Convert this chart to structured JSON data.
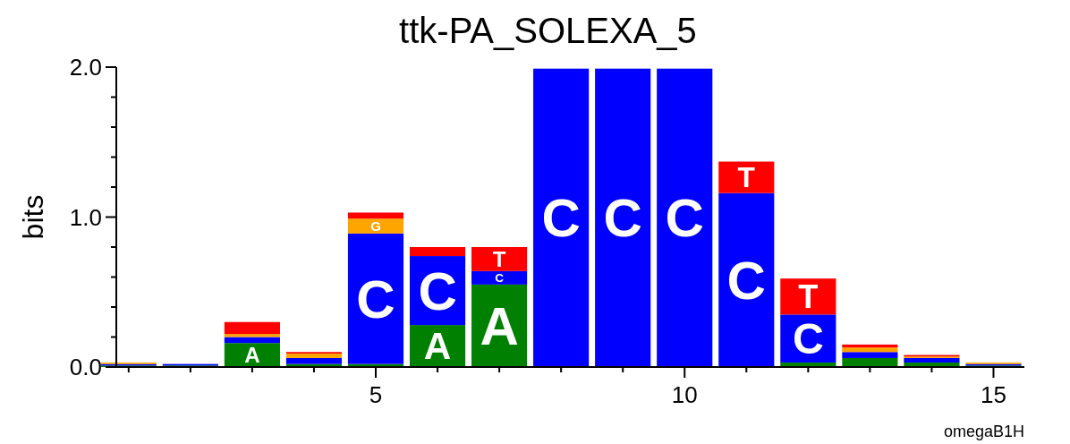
{
  "chart_data": {
    "type": "bar",
    "stacked": true,
    "title": "ttk-PA_SOLEXA_5",
    "ylabel": "bits",
    "x": [
      1,
      2,
      3,
      4,
      5,
      6,
      7,
      8,
      9,
      10,
      11,
      12,
      13,
      14,
      15
    ],
    "series": [
      {
        "name": "A",
        "color": "#008000",
        "values": [
          0.01,
          0.01,
          0.16,
          0.02,
          0.02,
          0.28,
          0.55,
          0,
          0,
          0,
          0,
          0.03,
          0.06,
          0.03,
          0.01
        ]
      },
      {
        "name": "C",
        "color": "#0000ff",
        "values": [
          0.01,
          0.01,
          0.04,
          0.04,
          0.87,
          0.46,
          0.09,
          1.99,
          1.99,
          1.99,
          1.16,
          0.32,
          0.04,
          0.03,
          0.01
        ]
      },
      {
        "name": "G",
        "color": "#ffa500",
        "values": [
          0.01,
          0.0,
          0.02,
          0.03,
          0.1,
          0,
          0,
          0,
          0,
          0,
          0,
          0,
          0.03,
          0.01,
          0.01
        ]
      },
      {
        "name": "T",
        "color": "#ff0000",
        "values": [
          0.0,
          0.0,
          0.08,
          0.01,
          0.04,
          0.06,
          0.16,
          0,
          0,
          0,
          0.21,
          0.24,
          0.02,
          0.01,
          0.0
        ]
      }
    ],
    "xlim": [
      0.8,
      15.5
    ],
    "xticks": [
      {
        "value": 1,
        "label": null
      },
      {
        "value": 2,
        "label": null
      },
      {
        "value": 3,
        "label": null
      },
      {
        "value": 4,
        "label": null
      },
      5,
      {
        "value": 6,
        "label": null
      },
      {
        "value": 7,
        "label": null
      },
      {
        "value": 8,
        "label": null
      },
      {
        "value": 9,
        "label": null
      },
      10,
      {
        "value": 11,
        "label": null
      },
      {
        "value": 12,
        "label": null
      },
      {
        "value": 13,
        "label": null
      },
      {
        "value": 14,
        "label": null
      },
      15
    ],
    "ylim": [
      0,
      2
    ],
    "yticks": [
      {
        "value": 0,
        "label": "0.0"
      },
      {
        "value": 0.2,
        "label": null
      },
      {
        "value": 0.4,
        "label": null
      },
      {
        "value": 0.6,
        "label": null
      },
      {
        "value": 0.8,
        "label": null
      },
      {
        "value": 1,
        "label": "1.0"
      },
      {
        "value": 1.2,
        "label": null
      },
      {
        "value": 1.4,
        "label": null
      },
      {
        "value": 1.6,
        "label": null
      },
      {
        "value": 1.8,
        "label": null
      },
      {
        "value": 2,
        "label": "2.0"
      }
    ],
    "annotations": [
      "omegaB1H"
    ]
  }
}
